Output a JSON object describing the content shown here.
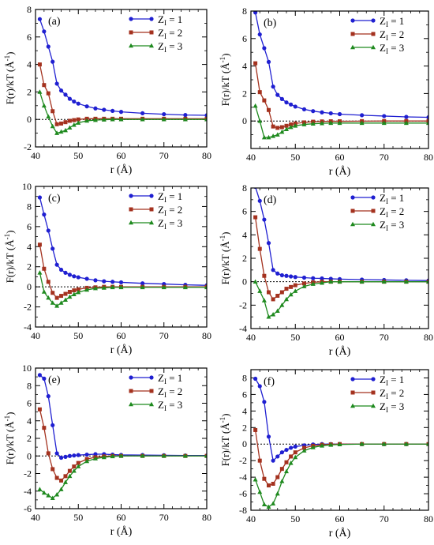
{
  "colors": {
    "z1": "#1f1fd1",
    "z2": "#a4321f",
    "z3": "#1f8a1f",
    "zero_line": "#000000"
  },
  "legend_entries": [
    "Z",
    "I",
    " = 1",
    " = 2",
    " = 3"
  ],
  "chart_data": [
    {
      "type": "line",
      "panel": "(a)",
      "xlabel": "r (Å)",
      "ylabel": "F(r)/kT (Å",
      "ylabel_sup": "-1",
      "ylabel_close": ")",
      "xlim": [
        40,
        80
      ],
      "ylim": [
        -2,
        8
      ],
      "xticks": [
        40,
        50,
        60,
        70,
        80
      ],
      "yticks": [
        -2,
        0,
        2,
        4,
        6,
        8
      ],
      "x_minor_step": 2,
      "y_minor_step": 1,
      "legend": "top-right",
      "series": [
        {
          "name": "Z1 = 1",
          "x": [
            41,
            42,
            43,
            44,
            45,
            46,
            47,
            48,
            49,
            50,
            52,
            54,
            56,
            58,
            60,
            65,
            70,
            75,
            80
          ],
          "y": [
            7.3,
            6.4,
            5.3,
            4.2,
            2.6,
            2.1,
            1.8,
            1.5,
            1.3,
            1.15,
            0.95,
            0.8,
            0.7,
            0.62,
            0.55,
            0.45,
            0.38,
            0.32,
            0.3
          ]
        },
        {
          "name": "Z1 = 2",
          "x": [
            41,
            42,
            43,
            44,
            45,
            46,
            47,
            48,
            49,
            50,
            52,
            54,
            56,
            58,
            60,
            65,
            70,
            75,
            80
          ],
          "y": [
            4.0,
            2.5,
            1.9,
            0.6,
            -0.35,
            -0.3,
            -0.2,
            -0.1,
            -0.05,
            0.0,
            0.05,
            0.05,
            0.05,
            0.05,
            0.05,
            0.05,
            0.05,
            0.05,
            0.05
          ]
        },
        {
          "name": "Z1 = 3",
          "x": [
            41,
            42,
            43,
            44,
            45,
            46,
            47,
            48,
            49,
            50,
            52,
            54,
            56,
            58,
            60,
            65,
            70,
            75,
            80
          ],
          "y": [
            2.0,
            1.0,
            0.2,
            -0.5,
            -1.0,
            -0.9,
            -0.8,
            -0.6,
            -0.4,
            -0.25,
            -0.1,
            -0.05,
            -0.02,
            0.0,
            0.0,
            0.0,
            0.0,
            0.0,
            0.0
          ]
        }
      ]
    },
    {
      "type": "line",
      "panel": "(b)",
      "xlabel": "r (Å)",
      "ylabel": "F(r)/kT (Å",
      "ylabel_sup": "-1",
      "ylabel_close": ")",
      "xlim": [
        40,
        80
      ],
      "ylim": [
        -2,
        8
      ],
      "xticks": [
        40,
        50,
        60,
        70,
        80
      ],
      "yticks": [
        0,
        2,
        4,
        6,
        8
      ],
      "x_minor_step": 2,
      "y_minor_step": 1,
      "legend": "top-right",
      "series": [
        {
          "name": "Z1 = 1",
          "x": [
            41,
            42,
            43,
            44,
            45,
            46,
            47,
            48,
            49,
            50,
            52,
            54,
            56,
            58,
            60,
            65,
            70,
            75,
            80
          ],
          "y": [
            7.9,
            6.3,
            5.3,
            4.3,
            2.5,
            1.9,
            1.6,
            1.35,
            1.2,
            1.05,
            0.85,
            0.72,
            0.63,
            0.56,
            0.5,
            0.42,
            0.36,
            0.3,
            0.27
          ]
        },
        {
          "name": "Z1 = 2",
          "x": [
            41,
            42,
            43,
            44,
            45,
            46,
            47,
            48,
            49,
            50,
            52,
            54,
            56,
            58,
            60,
            65,
            70,
            75,
            80
          ],
          "y": [
            4.2,
            2.1,
            1.5,
            0.8,
            -0.4,
            -0.5,
            -0.45,
            -0.35,
            -0.25,
            -0.18,
            -0.1,
            -0.05,
            -0.03,
            -0.02,
            -0.02,
            -0.01,
            0.0,
            0.0,
            0.0
          ]
        },
        {
          "name": "Z1 = 3",
          "x": [
            41,
            42,
            43,
            44,
            45,
            46,
            47,
            48,
            49,
            50,
            52,
            54,
            56,
            58,
            60,
            65,
            70,
            75,
            80
          ],
          "y": [
            1.1,
            0.0,
            -1.2,
            -1.2,
            -1.1,
            -1.0,
            -0.8,
            -0.6,
            -0.45,
            -0.35,
            -0.25,
            -0.2,
            -0.17,
            -0.15,
            -0.15,
            -0.15,
            -0.15,
            -0.15,
            -0.15
          ]
        }
      ]
    },
    {
      "type": "line",
      "panel": "(c)",
      "xlabel": "r (Å)",
      "ylabel": "F(r)/kT (Å",
      "ylabel_sup": "-1",
      "ylabel_close": ")",
      "xlim": [
        40,
        80
      ],
      "ylim": [
        -4,
        10
      ],
      "xticks": [
        40,
        50,
        60,
        70,
        80
      ],
      "yticks": [
        -4,
        -2,
        0,
        2,
        4,
        6,
        8,
        10
      ],
      "x_minor_step": 2,
      "y_minor_step": 1,
      "legend": "top-right",
      "series": [
        {
          "name": "Z1 = 1",
          "x": [
            41,
            42,
            43,
            44,
            45,
            46,
            47,
            48,
            49,
            50,
            52,
            54,
            56,
            58,
            60,
            65,
            70,
            75,
            80
          ],
          "y": [
            8.9,
            7.2,
            5.6,
            3.8,
            2.2,
            1.7,
            1.4,
            1.2,
            1.05,
            0.95,
            0.8,
            0.65,
            0.55,
            0.5,
            0.45,
            0.35,
            0.28,
            0.2,
            0.15
          ]
        },
        {
          "name": "Z1 = 2",
          "x": [
            41,
            42,
            43,
            44,
            45,
            46,
            47,
            48,
            49,
            50,
            52,
            54,
            56,
            58,
            60,
            65,
            70,
            75,
            80
          ],
          "y": [
            4.2,
            1.8,
            0.5,
            -0.6,
            -1.1,
            -0.9,
            -0.7,
            -0.5,
            -0.35,
            -0.25,
            -0.1,
            -0.05,
            0.0,
            0.0,
            0.0,
            0.0,
            0.0,
            0.0,
            0.0
          ]
        },
        {
          "name": "Z1 = 3",
          "x": [
            41,
            42,
            43,
            44,
            45,
            46,
            47,
            48,
            49,
            50,
            52,
            54,
            56,
            58,
            60,
            65,
            70,
            75,
            80
          ],
          "y": [
            1.4,
            -0.5,
            -1.1,
            -1.6,
            -1.9,
            -1.6,
            -1.3,
            -1.0,
            -0.75,
            -0.55,
            -0.3,
            -0.15,
            -0.1,
            -0.05,
            -0.05,
            -0.05,
            -0.05,
            -0.05,
            -0.05
          ]
        }
      ]
    },
    {
      "type": "line",
      "panel": "(d)",
      "xlabel": "r (Å)",
      "ylabel": "F(r)/kT (Å",
      "ylabel_sup": "-1",
      "ylabel_close": ")",
      "xlim": [
        40,
        80
      ],
      "ylim": [
        -4,
        8
      ],
      "xticks": [
        40,
        50,
        60,
        70,
        80
      ],
      "yticks": [
        -4,
        -2,
        0,
        2,
        4,
        6,
        8
      ],
      "x_minor_step": 2,
      "y_minor_step": 1,
      "legend": "top-right",
      "series": [
        {
          "name": "Z1 = 1",
          "x": [
            41,
            42,
            43,
            44,
            45,
            46,
            47,
            48,
            49,
            50,
            52,
            54,
            56,
            58,
            60,
            65,
            70,
            75,
            80
          ],
          "y": [
            8.1,
            6.9,
            5.3,
            3.3,
            1.0,
            0.7,
            0.55,
            0.5,
            0.45,
            0.4,
            0.35,
            0.3,
            0.28,
            0.25,
            0.22,
            0.18,
            0.15,
            0.12,
            0.1
          ]
        },
        {
          "name": "Z1 = 2",
          "x": [
            41,
            42,
            43,
            44,
            45,
            46,
            47,
            48,
            49,
            50,
            52,
            54,
            56,
            58,
            60,
            65,
            70,
            75,
            80
          ],
          "y": [
            5.5,
            2.8,
            0.5,
            -0.9,
            -1.5,
            -1.2,
            -0.9,
            -0.6,
            -0.45,
            -0.3,
            -0.15,
            -0.05,
            0.0,
            0.0,
            0.0,
            0.0,
            0.0,
            0.0,
            0.0
          ]
        },
        {
          "name": "Z1 = 3",
          "x": [
            41,
            42,
            43,
            44,
            45,
            46,
            47,
            48,
            49,
            50,
            52,
            54,
            56,
            58,
            60,
            65,
            70,
            75,
            80
          ],
          "y": [
            0.0,
            -0.8,
            -1.6,
            -3.0,
            -2.8,
            -2.5,
            -2.0,
            -1.5,
            -1.1,
            -0.8,
            -0.4,
            -0.2,
            -0.1,
            0.0,
            0.0,
            0.0,
            0.0,
            0.0,
            0.0
          ]
        }
      ]
    },
    {
      "type": "line",
      "panel": "(e)",
      "xlabel": "r (Å)",
      "ylabel": "F(r)/kT (Å",
      "ylabel_sup": "-1",
      "ylabel_close": ")",
      "xlim": [
        40,
        80
      ],
      "ylim": [
        -6,
        10
      ],
      "xticks": [
        40,
        50,
        60,
        70,
        80
      ],
      "yticks": [
        -6,
        -4,
        -2,
        0,
        2,
        4,
        6,
        8,
        10
      ],
      "x_minor_step": 2,
      "y_minor_step": 1,
      "legend": "top-right",
      "series": [
        {
          "name": "Z1 = 1",
          "x": [
            41,
            42,
            43,
            44,
            45,
            46,
            47,
            48,
            49,
            50,
            52,
            54,
            56,
            58,
            60,
            65,
            70,
            75,
            80
          ],
          "y": [
            9.2,
            8.8,
            6.8,
            3.5,
            0.3,
            -0.2,
            -0.1,
            0.0,
            0.05,
            0.1,
            0.15,
            0.2,
            0.2,
            0.15,
            0.12,
            0.1,
            0.08,
            0.05,
            0.05
          ]
        },
        {
          "name": "Z1 = 2",
          "x": [
            41,
            42,
            43,
            44,
            45,
            46,
            47,
            48,
            49,
            50,
            52,
            54,
            56,
            58,
            60,
            65,
            70,
            75,
            80
          ],
          "y": [
            5.3,
            3.2,
            0.3,
            -1.5,
            -2.5,
            -2.8,
            -2.3,
            -1.7,
            -1.2,
            -0.8,
            -0.35,
            -0.15,
            -0.05,
            0.0,
            0.0,
            0.0,
            0.0,
            0.0,
            0.0
          ]
        },
        {
          "name": "Z1 = 3",
          "x": [
            41,
            42,
            43,
            44,
            45,
            46,
            47,
            48,
            49,
            50,
            52,
            54,
            56,
            58,
            60,
            65,
            70,
            75,
            80
          ],
          "y": [
            -3.8,
            -4.2,
            -4.5,
            -4.8,
            -4.4,
            -3.8,
            -3.0,
            -2.3,
            -1.7,
            -1.2,
            -0.6,
            -0.3,
            -0.15,
            -0.05,
            0.0,
            0.0,
            0.0,
            0.0,
            0.0
          ]
        }
      ]
    },
    {
      "type": "line",
      "panel": "(f)",
      "xlabel": "r (Å)",
      "ylabel": "F(r)/kT (Å",
      "ylabel_sup": "-1",
      "ylabel_close": ")",
      "xlim": [
        40,
        80
      ],
      "ylim": [
        -8,
        9
      ],
      "xticks": [
        40,
        50,
        60,
        70,
        80
      ],
      "yticks": [
        -8,
        -6,
        -4,
        -2,
        0,
        2,
        4,
        6,
        8
      ],
      "x_minor_step": 2,
      "y_minor_step": 1,
      "legend": "top-right",
      "series": [
        {
          "name": "Z1 = 1",
          "x": [
            41,
            42,
            43,
            44,
            45,
            46,
            47,
            48,
            49,
            50,
            52,
            54,
            56,
            58,
            60,
            65,
            70,
            75,
            80
          ],
          "y": [
            7.9,
            7.0,
            5.1,
            0.9,
            -2.0,
            -1.5,
            -1.0,
            -0.7,
            -0.45,
            -0.3,
            -0.15,
            -0.05,
            0.0,
            0.0,
            0.0,
            0.0,
            0.0,
            0.0,
            0.0
          ]
        },
        {
          "name": "Z1 = 2",
          "x": [
            41,
            42,
            43,
            44,
            45,
            46,
            47,
            48,
            49,
            50,
            52,
            54,
            56,
            58,
            60,
            65,
            70,
            75,
            80
          ],
          "y": [
            1.7,
            -2.0,
            -4.2,
            -5.0,
            -4.8,
            -4.0,
            -3.0,
            -2.2,
            -1.5,
            -1.0,
            -0.45,
            -0.2,
            -0.08,
            -0.03,
            0.0,
            0.0,
            0.0,
            0.0,
            0.0
          ]
        },
        {
          "name": "Z1 = 3",
          "x": [
            41,
            42,
            43,
            44,
            45,
            46,
            47,
            48,
            49,
            50,
            52,
            54,
            56,
            58,
            60,
            65,
            70,
            75,
            80
          ],
          "y": [
            -4.3,
            -5.8,
            -7.3,
            -7.6,
            -7.2,
            -6.0,
            -4.5,
            -3.3,
            -2.3,
            -1.6,
            -0.8,
            -0.4,
            -0.2,
            -0.1,
            -0.05,
            0.0,
            0.0,
            0.0,
            0.0
          ]
        }
      ]
    }
  ]
}
